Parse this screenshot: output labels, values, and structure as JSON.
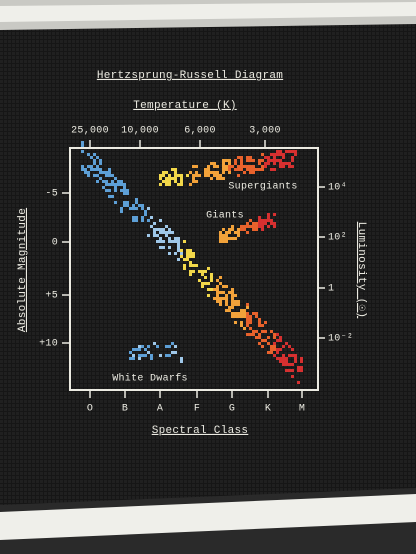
{
  "header": {
    "title": "Hertzsprung-Russell Diagram"
  },
  "top_axis": {
    "label": "Temperature (K)",
    "ticks": [
      "25,000",
      "10,000",
      "6,000",
      "3,000"
    ]
  },
  "left_axis": {
    "label": "Absolute Magnitude",
    "ticks": [
      "-5",
      "0",
      "+5",
      "+10"
    ]
  },
  "right_axis": {
    "label": "Luminosity (☉)",
    "ticks": [
      "10⁴",
      "10²",
      "1",
      "10⁻²"
    ]
  },
  "bottom_axis": {
    "label": "Spectral Class",
    "ticks": [
      "O",
      "B",
      "A",
      "F",
      "G",
      "K",
      "M"
    ]
  },
  "annotations": {
    "supergiants": "Supergiants",
    "giants": "Giants",
    "white_dwarfs": "White Dwarfs"
  }
}
